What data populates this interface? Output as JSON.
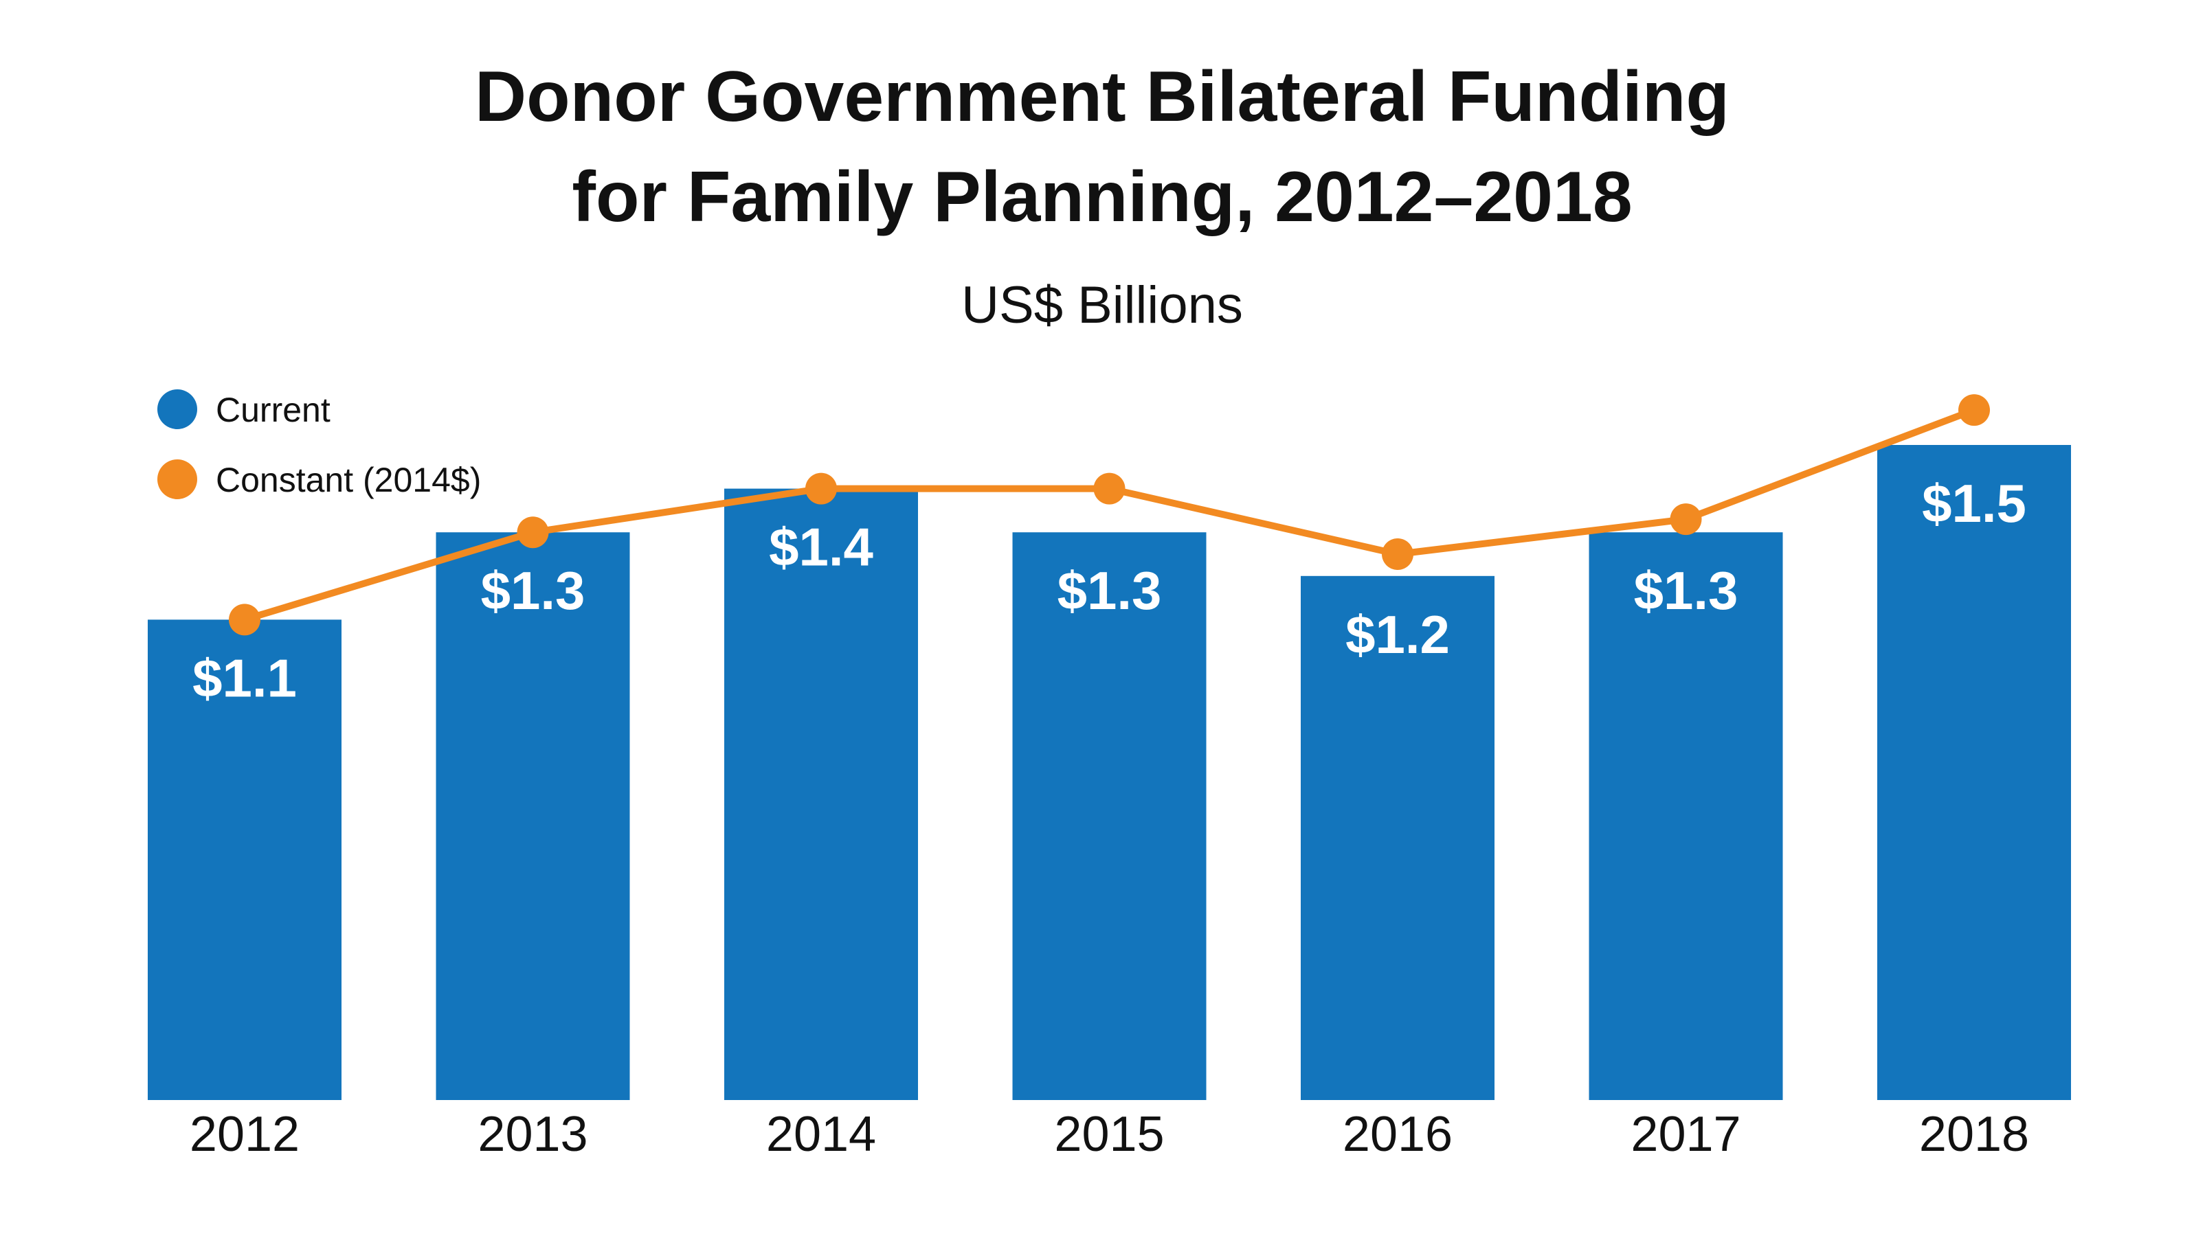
{
  "chart_data": {
    "type": "bar",
    "title_lines": [
      "Donor Government Bilateral Funding",
      "for Family Planning, 2012–2018"
    ],
    "subtitle": "US$ Billions",
    "categories": [
      "2012",
      "2013",
      "2014",
      "2015",
      "2016",
      "2017",
      "2018"
    ],
    "series": [
      {
        "name": "Current",
        "kind": "bar",
        "color": "#1375bc",
        "values": [
          1.1,
          1.3,
          1.4,
          1.3,
          1.2,
          1.3,
          1.5
        ],
        "data_labels": [
          "$1.1",
          "$1.3",
          "$1.4",
          "$1.3",
          "$1.2",
          "$1.3",
          "$1.5"
        ]
      },
      {
        "name": "Constant (2014$)",
        "kind": "line",
        "color": "#f28a21",
        "values": [
          1.1,
          1.3,
          1.4,
          1.4,
          1.25,
          1.33,
          1.58
        ]
      }
    ],
    "ylim": [
      0,
      1.7
    ],
    "grid": false,
    "legend_position": "top-left"
  }
}
